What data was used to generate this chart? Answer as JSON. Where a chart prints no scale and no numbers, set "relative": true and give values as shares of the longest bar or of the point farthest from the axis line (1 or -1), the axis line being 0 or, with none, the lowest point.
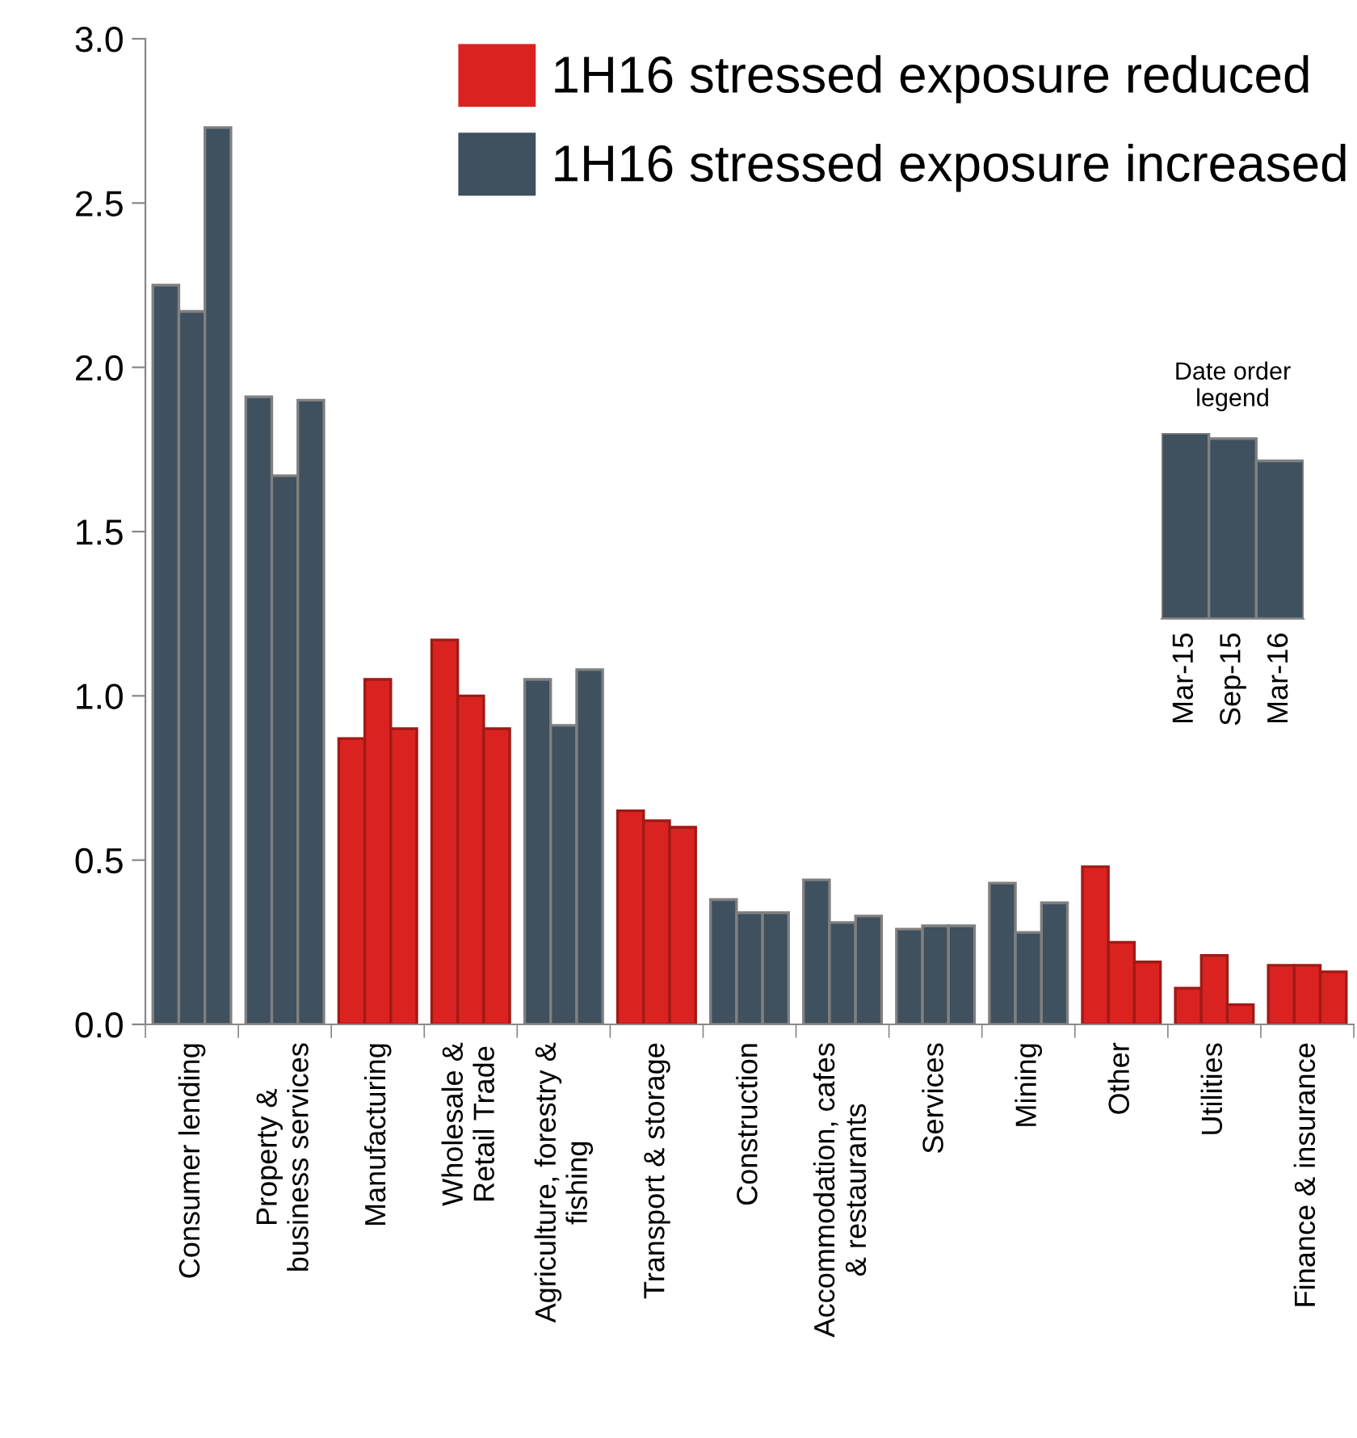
{
  "chart_data": [
    {
      "type": "bar",
      "categories": [
        "Consumer lending",
        "Property &\nbusiness services",
        "Manufacturing",
        "Wholesale &\nRetail Trade",
        "Agriculture, forestry &\nfishing",
        "Transport & storage",
        "Construction",
        "Accommodation, cafes\n& restaurants",
        "Services",
        "Mining",
        "Other",
        "Utilities",
        "Finance & insurance"
      ],
      "series": [
        {
          "name": "1H16 stressed exposure reduced",
          "color": "#da2320",
          "values": [
            null,
            null,
            0.87,
            1.17,
            null,
            0.65,
            null,
            null,
            null,
            null,
            0.48,
            0.11,
            0.18
          ]
        },
        {
          "color": "#da2320",
          "values": [
            null,
            null,
            1.05,
            1.0,
            null,
            0.62,
            null,
            null,
            null,
            null,
            0.25,
            0.21,
            0.18
          ]
        },
        {
          "color": "#da2320",
          "values": [
            null,
            null,
            0.9,
            0.9,
            null,
            0.6,
            null,
            null,
            null,
            null,
            0.19,
            0.06,
            0.16
          ]
        },
        {
          "name": "1H16 stressed exposure increased",
          "color": "#3f505f",
          "values": [
            2.25,
            1.91,
            null,
            null,
            1.05,
            null,
            0.38,
            0.44,
            0.29,
            0.43,
            null,
            null,
            null
          ]
        },
        {
          "color": "#3f505f",
          "values": [
            2.17,
            1.67,
            null,
            null,
            0.91,
            null,
            0.34,
            0.31,
            0.3,
            0.28,
            null,
            null,
            null
          ]
        },
        {
          "color": "#3f505f",
          "values": [
            2.73,
            1.9,
            null,
            null,
            1.08,
            null,
            0.34,
            0.33,
            0.3,
            0.37,
            null,
            null,
            null
          ]
        }
      ],
      "ylim": [
        0,
        3.0
      ],
      "yticks": [
        {
          "value": 0,
          "label": "0.0"
        },
        {
          "value": 0.5,
          "label": "0.5"
        },
        {
          "value": 1.0,
          "label": "1.0"
        },
        {
          "value": 1.5,
          "label": "1.5"
        },
        {
          "value": 2.0,
          "label": "2.0"
        },
        {
          "value": 2.5,
          "label": "2.5"
        },
        {
          "value": 3.0,
          "label": "3.0"
        }
      ],
      "grid": false,
      "legend": "top right"
    },
    {
      "type": "bar",
      "title": "Date order\nlegend",
      "categories": [
        "Mar-15",
        "Sep-15",
        "Mar-16"
      ],
      "values": [
        1,
        0.97,
        0.85
      ],
      "color": "#3f505f",
      "relative": true
    }
  ]
}
